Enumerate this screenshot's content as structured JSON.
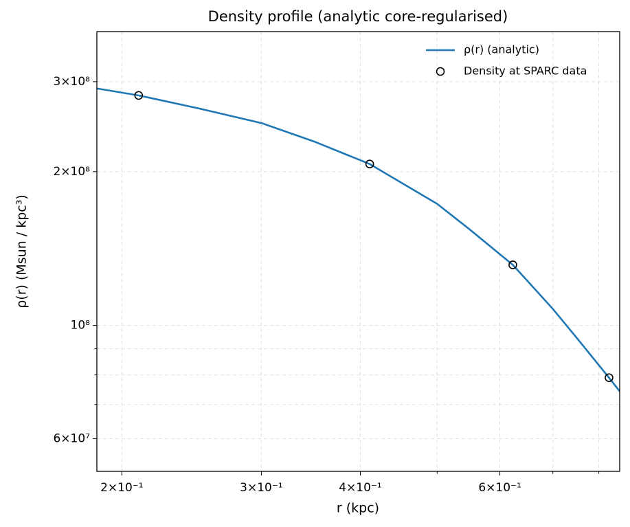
{
  "chart_data": {
    "type": "line",
    "title": "Density profile (analytic core-regularised)",
    "xlabel": "r (kpc)",
    "ylabel": "ρ(r) (Msun / kpc³)",
    "xscale": "log",
    "yscale": "log",
    "xlim": [
      0.186,
      0.85
    ],
    "ylim": [
      51800000,
      376000000
    ],
    "xticks": [
      {
        "value": 0.2,
        "label": "2×10⁻¹"
      },
      {
        "value": 0.3,
        "label": "3×10⁻¹"
      },
      {
        "value": 0.4,
        "label": "4×10⁻¹"
      },
      {
        "value": 0.6,
        "label": "6×10⁻¹"
      }
    ],
    "xminorticks": [
      0.5,
      0.7,
      0.8
    ],
    "yticks": [
      {
        "value": 60000000,
        "label": "6×10⁷"
      },
      {
        "value": 100000000,
        "label": "10⁸"
      },
      {
        "value": 200000000,
        "label": "2×10⁸"
      },
      {
        "value": 300000000,
        "label": "3×10⁸"
      }
    ],
    "yminorticks": [
      70000000,
      80000000,
      90000000
    ],
    "grid": true,
    "legend": "upper right",
    "series": [
      {
        "name": "ρ(r) (analytic)",
        "type": "line",
        "color": "#1f77b4",
        "x": [
          0.186,
          0.21,
          0.25,
          0.3,
          0.35,
          0.411,
          0.5,
          0.55,
          0.623,
          0.7,
          0.75,
          0.824,
          0.85
        ],
        "values": [
          291000000,
          282000000,
          266000000,
          249000000,
          229000000,
          207000000,
          173000000,
          154000000,
          131400000,
          107700000,
          94600000,
          79000000,
          74300000
        ]
      },
      {
        "name": "Density at SPARC data",
        "type": "scatter",
        "color": "#000000",
        "x": [
          0.21,
          0.411,
          0.623,
          0.824
        ],
        "values": [
          282000000,
          207000000,
          131400000,
          79000000
        ]
      }
    ]
  }
}
